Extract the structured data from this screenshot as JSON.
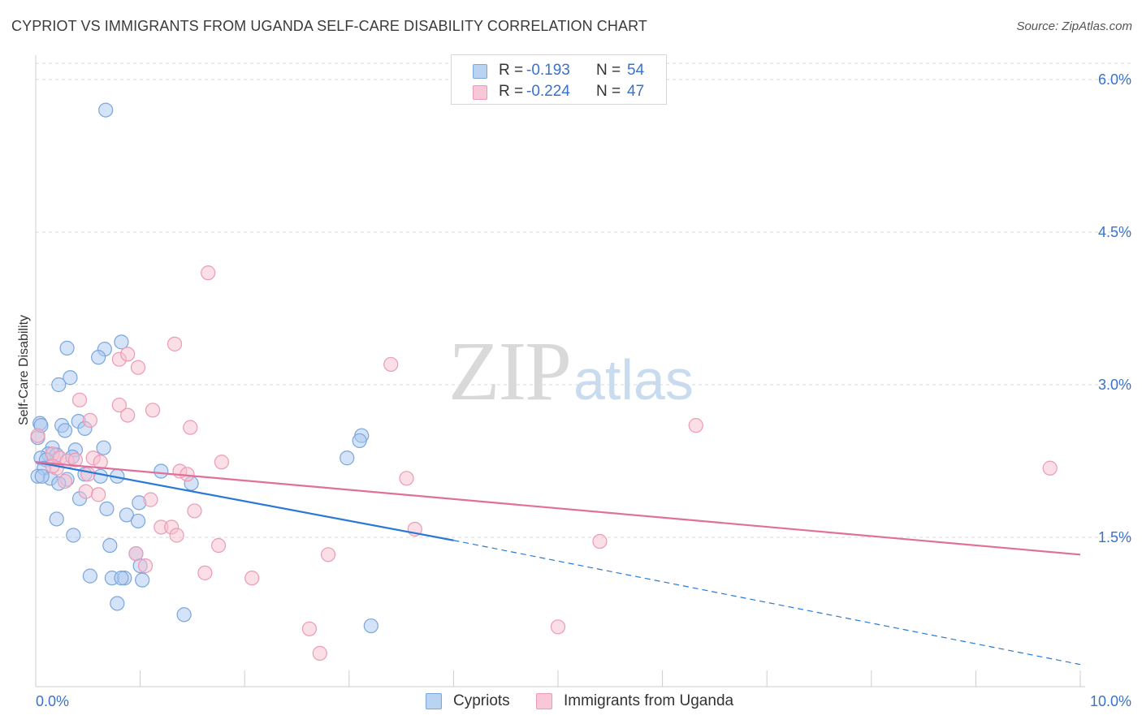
{
  "header": {
    "title": "CYPRIOT VS IMMIGRANTS FROM UGANDA SELF-CARE DISABILITY CORRELATION CHART",
    "source": "Source: ZipAtlas.com"
  },
  "watermark": {
    "part1": "ZIP",
    "part2": "atlas"
  },
  "legend": {
    "series1": {
      "r_label": "R =",
      "r_value": "-0.193",
      "n_label": "N =",
      "n_value": "54"
    },
    "series2": {
      "r_label": "R =",
      "r_value": "-0.224",
      "n_label": "N =",
      "n_value": "47"
    }
  },
  "bottom_legend": {
    "series1_label": "Cypriots",
    "series2_label": "Immigrants from Uganda"
  },
  "colors": {
    "blue_fill": "#a9c8ef",
    "blue_stroke": "#7aa6dc",
    "blue_line": "#2a78d6",
    "pink_fill": "#f7bfd0",
    "pink_stroke": "#ec9ab5",
    "pink_line": "#e0709a",
    "tick_text": "#3a72c9",
    "grid": "#d9d9d9"
  },
  "chart_data": {
    "type": "scatter",
    "title": "CYPRIOT VS IMMIGRANTS FROM UGANDA SELF-CARE DISABILITY CORRELATION CHART",
    "xlabel": "",
    "ylabel": "Self-Care Disability",
    "xlim": [
      0,
      10
    ],
    "ylim": [
      0,
      6.2
    ],
    "x_tick_labels": [
      "0.0%",
      "10.0%"
    ],
    "y_ticks": [
      1.5,
      3.0,
      4.5,
      6.0
    ],
    "y_tick_labels": [
      "1.5%",
      "3.0%",
      "4.5%",
      "6.0%"
    ],
    "grid": true,
    "series": [
      {
        "name": "Cypriots",
        "color": "blue",
        "points": [
          [
            0.67,
            5.7
          ],
          [
            0.82,
            3.42
          ],
          [
            0.3,
            3.36
          ],
          [
            0.66,
            3.35
          ],
          [
            0.6,
            3.27
          ],
          [
            0.33,
            3.07
          ],
          [
            0.22,
            3.0
          ],
          [
            0.04,
            2.62
          ],
          [
            0.25,
            2.6
          ],
          [
            0.41,
            2.64
          ],
          [
            0.47,
            2.57
          ],
          [
            0.28,
            2.55
          ],
          [
            0.02,
            2.48
          ],
          [
            0.16,
            2.38
          ],
          [
            0.38,
            2.36
          ],
          [
            0.65,
            2.38
          ],
          [
            0.12,
            2.32
          ],
          [
            0.2,
            2.31
          ],
          [
            0.35,
            2.29
          ],
          [
            0.05,
            2.28
          ],
          [
            0.1,
            2.26
          ],
          [
            0.08,
            2.18
          ],
          [
            0.47,
            2.12
          ],
          [
            0.62,
            2.1
          ],
          [
            0.78,
            2.1
          ],
          [
            1.2,
            2.15
          ],
          [
            0.02,
            2.1
          ],
          [
            0.14,
            2.08
          ],
          [
            0.06,
            2.1
          ],
          [
            0.3,
            2.07
          ],
          [
            0.22,
            2.03
          ],
          [
            1.49,
            2.03
          ],
          [
            0.42,
            1.88
          ],
          [
            0.99,
            1.84
          ],
          [
            0.68,
            1.78
          ],
          [
            0.87,
            1.72
          ],
          [
            0.2,
            1.68
          ],
          [
            0.98,
            1.66
          ],
          [
            0.36,
            1.52
          ],
          [
            0.71,
            1.42
          ],
          [
            0.96,
            1.34
          ],
          [
            1.0,
            1.22
          ],
          [
            0.52,
            1.12
          ],
          [
            0.73,
            1.1
          ],
          [
            0.85,
            1.1
          ],
          [
            0.82,
            1.1
          ],
          [
            1.02,
            1.08
          ],
          [
            0.78,
            0.85
          ],
          [
            1.42,
            0.74
          ],
          [
            3.12,
            2.5
          ],
          [
            3.1,
            2.45
          ],
          [
            2.98,
            2.28
          ],
          [
            3.21,
            0.63
          ],
          [
            0.05,
            2.6
          ]
        ]
      },
      {
        "name": "Immigrants from Uganda",
        "color": "pink",
        "points": [
          [
            0.02,
            2.5
          ],
          [
            1.65,
            4.1
          ],
          [
            1.33,
            3.4
          ],
          [
            0.8,
            3.25
          ],
          [
            0.88,
            3.3
          ],
          [
            0.98,
            3.17
          ],
          [
            3.4,
            3.2
          ],
          [
            0.8,
            2.8
          ],
          [
            0.88,
            2.7
          ],
          [
            1.12,
            2.75
          ],
          [
            0.42,
            2.85
          ],
          [
            0.52,
            2.65
          ],
          [
            1.48,
            2.58
          ],
          [
            6.32,
            2.6
          ],
          [
            9.71,
            2.18
          ],
          [
            0.16,
            2.32
          ],
          [
            0.23,
            2.28
          ],
          [
            0.3,
            2.25
          ],
          [
            0.55,
            2.28
          ],
          [
            0.62,
            2.24
          ],
          [
            0.38,
            2.26
          ],
          [
            1.78,
            2.24
          ],
          [
            0.2,
            2.18
          ],
          [
            0.5,
            2.12
          ],
          [
            1.38,
            2.15
          ],
          [
            1.45,
            2.12
          ],
          [
            3.55,
            2.08
          ],
          [
            0.28,
            2.05
          ],
          [
            0.48,
            1.95
          ],
          [
            0.6,
            1.92
          ],
          [
            1.1,
            1.87
          ],
          [
            1.52,
            1.76
          ],
          [
            1.2,
            1.6
          ],
          [
            1.3,
            1.6
          ],
          [
            1.35,
            1.52
          ],
          [
            3.63,
            1.58
          ],
          [
            5.4,
            1.46
          ],
          [
            1.75,
            1.42
          ],
          [
            0.96,
            1.34
          ],
          [
            2.8,
            1.33
          ],
          [
            1.05,
            1.22
          ],
          [
            1.62,
            1.15
          ],
          [
            2.07,
            1.1
          ],
          [
            2.62,
            0.6
          ],
          [
            5.0,
            0.62
          ],
          [
            2.72,
            0.36
          ],
          [
            0.16,
            2.2
          ]
        ]
      }
    ],
    "trend_lines": [
      {
        "series": "Cypriots",
        "x_start": 0.0,
        "y_start": 2.24,
        "x_solid_end": 4.0,
        "y_solid_end": 1.47,
        "x_end": 10.0,
        "y_end": 0.25,
        "style": "solid-then-dashed"
      },
      {
        "series": "Immigrants from Uganda",
        "x_start": 0.0,
        "y_start": 2.24,
        "x_end": 10.0,
        "y_end": 1.33,
        "style": "solid"
      }
    ]
  }
}
